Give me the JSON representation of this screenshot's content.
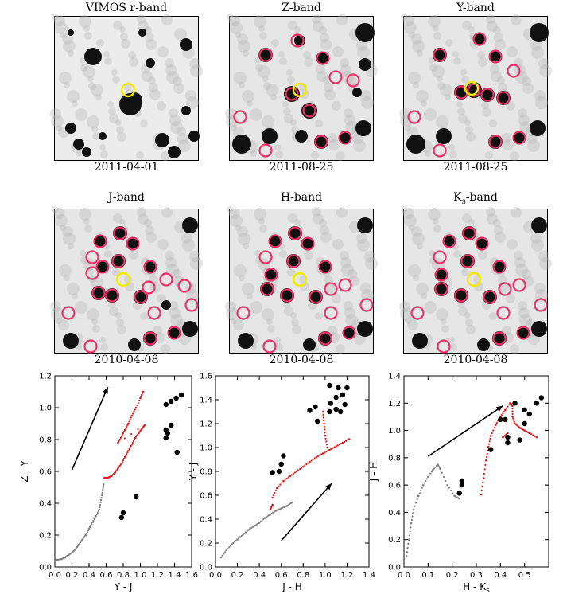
{
  "image_panels": [
    {
      "title": "VIMOS r-band",
      "date": "2011-04-01"
    },
    {
      "title": "Z-band",
      "date": "2011-08-25"
    },
    {
      "title": "Y-band",
      "date": "2011-08-25"
    },
    {
      "title": "J-band",
      "date": "2010-04-08"
    },
    {
      "title": "H-band",
      "date": "2010-04-08"
    },
    {
      "title": "Ks-band",
      "date": "2010-04-08"
    }
  ],
  "colors": {
    "target_circle": "#f2ea00",
    "source_circle": "#e8336a",
    "model_red": "#e41a1c",
    "model_grey": "#808080",
    "observed": "#000000"
  },
  "chart_data": [
    {
      "type": "scatter",
      "xlabel": "Y - J",
      "ylabel": "Z - Y",
      "xlim": [
        0.0,
        1.6
      ],
      "ylim": [
        0.0,
        1.2
      ],
      "xticks": [
        "0.0",
        "0.2",
        "0.4",
        "0.6",
        "0.8",
        "1.0",
        "1.2",
        "1.4",
        "1.6"
      ],
      "yticks": [
        "0.0",
        "0.2",
        "0.4",
        "0.6",
        "0.8",
        "1.0",
        "1.2"
      ],
      "arrow": {
        "from": [
          0.2,
          0.61
        ],
        "to": [
          0.62,
          1.13
        ]
      },
      "series": [
        {
          "values": [
            [
              0.03,
              0.045
            ],
            [
              0.08,
              0.05
            ],
            [
              0.12,
              0.06
            ],
            [
              0.16,
              0.075
            ],
            [
              0.2,
              0.09
            ],
            [
              0.24,
              0.11
            ],
            [
              0.28,
              0.14
            ],
            [
              0.32,
              0.17
            ],
            [
              0.36,
              0.2
            ],
            [
              0.4,
              0.24
            ],
            [
              0.44,
              0.28
            ],
            [
              0.48,
              0.32
            ],
            [
              0.52,
              0.36
            ],
            [
              0.54,
              0.42
            ],
            [
              0.56,
              0.48
            ],
            [
              0.57,
              0.52
            ]
          ]
        },
        {
          "values": [
            [
              0.58,
              0.56
            ],
            [
              0.62,
              0.56
            ],
            [
              0.66,
              0.57
            ],
            [
              0.7,
              0.59
            ],
            [
              0.74,
              0.62
            ],
            [
              0.78,
              0.65
            ],
            [
              0.82,
              0.69
            ],
            [
              0.86,
              0.73
            ],
            [
              0.9,
              0.77
            ],
            [
              0.94,
              0.81
            ],
            [
              0.98,
              0.84
            ],
            [
              1.02,
              0.87
            ],
            [
              1.05,
              0.89
            ],
            [
              0.74,
              0.78
            ],
            [
              0.78,
              0.82
            ],
            [
              0.82,
              0.86
            ],
            [
              0.86,
              0.9
            ],
            [
              0.9,
              0.95
            ],
            [
              0.95,
              1.0
            ],
            [
              1.0,
              1.06
            ],
            [
              1.03,
              1.1
            ]
          ]
        },
        {
          "values": [
            [
              1.3,
              1.02
            ],
            [
              1.36,
              1.04
            ],
            [
              1.42,
              1.06
            ],
            [
              1.48,
              1.08
            ],
            [
              1.3,
              0.86
            ],
            [
              1.32,
              0.84
            ],
            [
              1.3,
              0.81
            ],
            [
              1.36,
              0.89
            ],
            [
              1.43,
              0.72
            ],
            [
              0.8,
              0.34
            ],
            [
              0.78,
              0.31
            ],
            [
              0.95,
              0.44
            ]
          ]
        }
      ]
    },
    {
      "type": "scatter",
      "xlabel": "J - H",
      "ylabel": "Y - J",
      "xlim": [
        0.0,
        1.4
      ],
      "ylim": [
        0.0,
        1.6
      ],
      "xticks": [
        "0.0",
        "0.2",
        "0.4",
        "0.6",
        "0.8",
        "1.0",
        "1.2",
        "1.4"
      ],
      "yticks": [
        "0.0",
        "0.2",
        "0.4",
        "0.6",
        "0.8",
        "1.0",
        "1.2",
        "1.4",
        "1.6"
      ],
      "arrow": {
        "from": [
          0.6,
          0.22
        ],
        "to": [
          1.06,
          0.7
        ]
      },
      "series": [
        {
          "values": [
            [
              0.05,
              0.08
            ],
            [
              0.1,
              0.14
            ],
            [
              0.15,
              0.19
            ],
            [
              0.2,
              0.23
            ],
            [
              0.25,
              0.27
            ],
            [
              0.3,
              0.31
            ],
            [
              0.35,
              0.34
            ],
            [
              0.4,
              0.37
            ],
            [
              0.45,
              0.41
            ],
            [
              0.5,
              0.44
            ],
            [
              0.55,
              0.47
            ],
            [
              0.6,
              0.49
            ],
            [
              0.65,
              0.51
            ],
            [
              0.7,
              0.54
            ]
          ]
        },
        {
          "values": [
            [
              0.52,
              0.58
            ],
            [
              0.56,
              0.66
            ],
            [
              0.62,
              0.72
            ],
            [
              0.68,
              0.76
            ],
            [
              0.74,
              0.8
            ],
            [
              0.8,
              0.84
            ],
            [
              0.86,
              0.88
            ],
            [
              0.92,
              0.92
            ],
            [
              0.98,
              0.95
            ],
            [
              1.04,
              0.98
            ],
            [
              1.1,
              1.01
            ],
            [
              1.16,
              1.04
            ],
            [
              1.22,
              1.07
            ],
            [
              0.98,
              1.3
            ],
            [
              0.99,
              1.2
            ],
            [
              1.0,
              1.1
            ],
            [
              1.02,
              1.0
            ],
            [
              0.5,
              0.48
            ],
            [
              0.52,
              0.52
            ]
          ]
        },
        {
          "values": [
            [
              1.04,
              1.52
            ],
            [
              1.12,
              1.5
            ],
            [
              1.2,
              1.5
            ],
            [
              1.1,
              1.42
            ],
            [
              1.16,
              1.44
            ],
            [
              1.05,
              1.37
            ],
            [
              1.1,
              1.32
            ],
            [
              1.18,
              1.36
            ],
            [
              1.04,
              1.3
            ],
            [
              1.14,
              1.3
            ],
            [
              0.86,
              1.31
            ],
            [
              0.91,
              1.34
            ],
            [
              0.93,
              1.22
            ],
            [
              0.62,
              0.93
            ],
            [
              0.6,
              0.86
            ],
            [
              0.58,
              0.8
            ],
            [
              0.52,
              0.79
            ]
          ]
        }
      ]
    },
    {
      "type": "scatter",
      "xlabel": "H - Ks",
      "ylabel": "J - H",
      "xlim": [
        0.0,
        0.6
      ],
      "ylim": [
        0.0,
        1.4
      ],
      "xticks": [
        "0.0",
        "0.1",
        "0.2",
        "0.3",
        "0.4",
        "0.5"
      ],
      "yticks": [
        "0.0",
        "0.2",
        "0.4",
        "0.6",
        "0.8",
        "1.0",
        "1.2",
        "1.4"
      ],
      "arrow": {
        "from": [
          0.1,
          0.81
        ],
        "to": [
          0.41,
          1.18
        ]
      },
      "series": [
        {
          "values": [
            [
              0.01,
              0.08
            ],
            [
              0.02,
              0.2
            ],
            [
              0.03,
              0.32
            ],
            [
              0.04,
              0.42
            ],
            [
              0.06,
              0.52
            ],
            [
              0.08,
              0.6
            ],
            [
              0.1,
              0.66
            ],
            [
              0.12,
              0.71
            ],
            [
              0.14,
              0.75
            ],
            [
              0.15,
              0.72
            ],
            [
              0.18,
              0.6
            ],
            [
              0.21,
              0.52
            ],
            [
              0.23,
              0.5
            ]
          ]
        },
        {
          "values": [
            [
              0.32,
              0.53
            ],
            [
              0.33,
              0.65
            ],
            [
              0.34,
              0.78
            ],
            [
              0.35,
              0.88
            ],
            [
              0.36,
              0.96
            ],
            [
              0.38,
              1.04
            ],
            [
              0.4,
              1.1
            ],
            [
              0.42,
              1.15
            ],
            [
              0.44,
              1.2
            ],
            [
              0.45,
              1.18
            ],
            [
              0.45,
              1.1
            ],
            [
              0.46,
              1.05
            ],
            [
              0.48,
              1.02
            ],
            [
              0.5,
              1.0
            ],
            [
              0.52,
              0.98
            ],
            [
              0.55,
              0.95
            ],
            [
              0.41,
              0.95
            ],
            [
              0.43,
              0.98
            ]
          ]
        },
        {
          "values": [
            [
              0.4,
              1.08
            ],
            [
              0.42,
              1.08
            ],
            [
              0.46,
              1.2
            ],
            [
              0.5,
              1.15
            ],
            [
              0.55,
              1.2
            ],
            [
              0.57,
              1.24
            ],
            [
              0.52,
              1.12
            ],
            [
              0.5,
              1.05
            ],
            [
              0.48,
              0.93
            ],
            [
              0.43,
              0.91
            ],
            [
              0.43,
              0.95
            ],
            [
              0.36,
              0.86
            ],
            [
              0.24,
              0.63
            ],
            [
              0.24,
              0.6
            ],
            [
              0.23,
              0.54
            ]
          ]
        }
      ]
    }
  ]
}
